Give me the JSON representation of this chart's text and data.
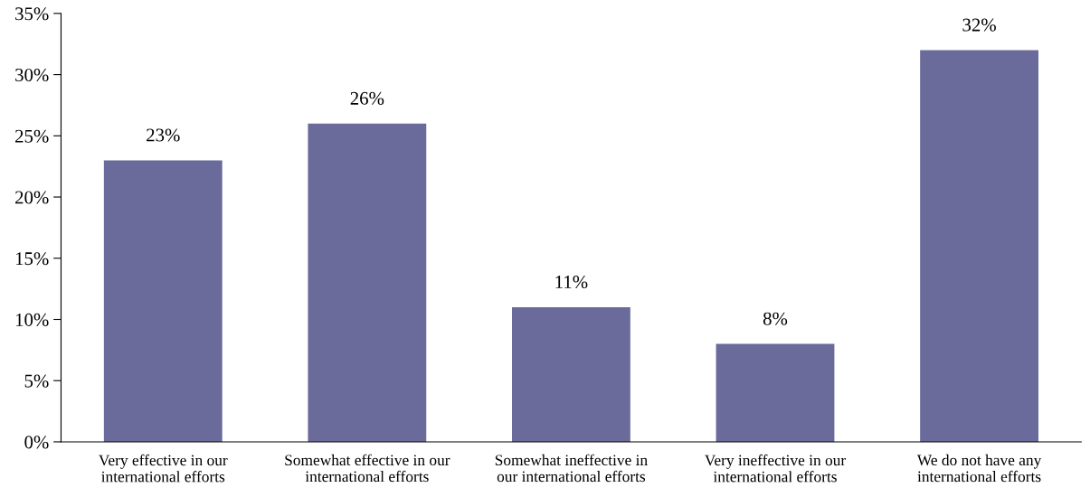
{
  "chart_data": {
    "type": "bar",
    "categories": [
      "Very effective in our\ninternational efforts",
      "Somewhat effective in our\ninternational efforts",
      "Somewhat ineffective in\nour international efforts",
      "Very ineffective in our\ninternational efforts",
      "We do not have any\ninternational efforts"
    ],
    "values": [
      23,
      26,
      11,
      8,
      32
    ],
    "value_labels": [
      "23%",
      "26%",
      "11%",
      "8%",
      "32%"
    ],
    "color": "#6b6b9b",
    "ylim": [
      0,
      35
    ],
    "yticks": [
      {
        "value": 0,
        "label": "0%"
      },
      {
        "value": 5,
        "label": "5%"
      },
      {
        "value": 10,
        "label": "10%"
      },
      {
        "value": 15,
        "label": "15%"
      },
      {
        "value": 20,
        "label": "20%"
      },
      {
        "value": 25,
        "label": "25%"
      },
      {
        "value": 30,
        "label": "30%"
      },
      {
        "value": 35,
        "label": "35%"
      }
    ],
    "grid": false,
    "legend": false
  }
}
